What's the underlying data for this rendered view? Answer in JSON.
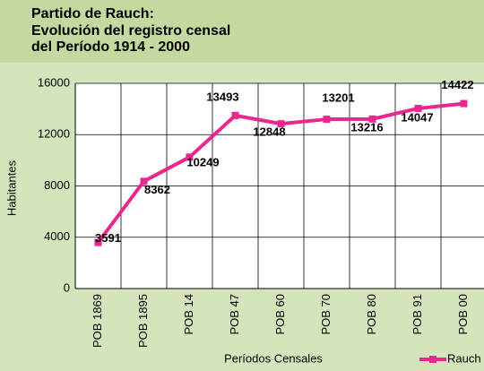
{
  "chart_data": {
    "type": "line",
    "title": [
      "Partido de Rauch:",
      "Evolución del registro censal",
      "del Período 1914 - 2000"
    ],
    "x_label": "Períodos Censales",
    "y_label": "Habitantes",
    "categories": [
      "POB 1869",
      "POB 1895",
      "POB 14",
      "POB 47",
      "POB 60",
      "POB 70",
      "POB 80",
      "POB 91",
      "POB 00"
    ],
    "series": [
      {
        "name": "Rauch",
        "color": "#e8288f",
        "values": [
          3591,
          8362,
          10249,
          13493,
          12848,
          13201,
          13216,
          14047,
          14422
        ]
      }
    ],
    "ylim": [
      0,
      16000
    ],
    "yticks": [
      0,
      4000,
      8000,
      12000,
      16000
    ],
    "grid": true,
    "legend": "bottom-right"
  }
}
